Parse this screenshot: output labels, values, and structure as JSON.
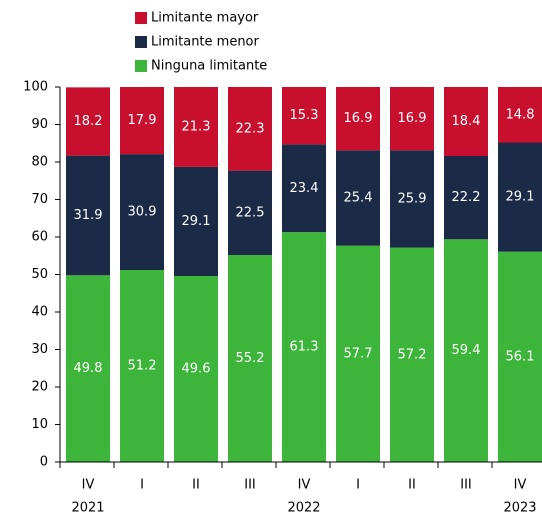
{
  "chart_data": {
    "type": "stacked-bar",
    "categories": [
      "IV",
      "I",
      "II",
      "III",
      "IV",
      "I",
      "II",
      "III",
      "IV"
    ],
    "year_labels": [
      "2021",
      null,
      null,
      null,
      "2022",
      null,
      null,
      null,
      "2023"
    ],
    "series": [
      {
        "name": "Limitante mayor",
        "color": "#c8102e",
        "values": [
          18.2,
          17.9,
          21.3,
          22.3,
          15.3,
          16.9,
          16.9,
          18.4,
          14.8
        ]
      },
      {
        "name": "Limitante menor",
        "color": "#1b2a47",
        "values": [
          31.9,
          30.9,
          29.1,
          22.5,
          23.4,
          25.4,
          25.9,
          22.2,
          29.1
        ]
      },
      {
        "name": "Ninguna limitante",
        "color": "#3db53b",
        "values": [
          49.8,
          51.2,
          49.6,
          55.2,
          61.3,
          57.7,
          57.2,
          59.4,
          56.1
        ]
      }
    ],
    "ylim": [
      0,
      100
    ],
    "yticks": [
      0,
      10,
      20,
      30,
      40,
      50,
      60,
      70,
      80,
      90,
      100
    ],
    "grid": false,
    "legend": "top"
  }
}
